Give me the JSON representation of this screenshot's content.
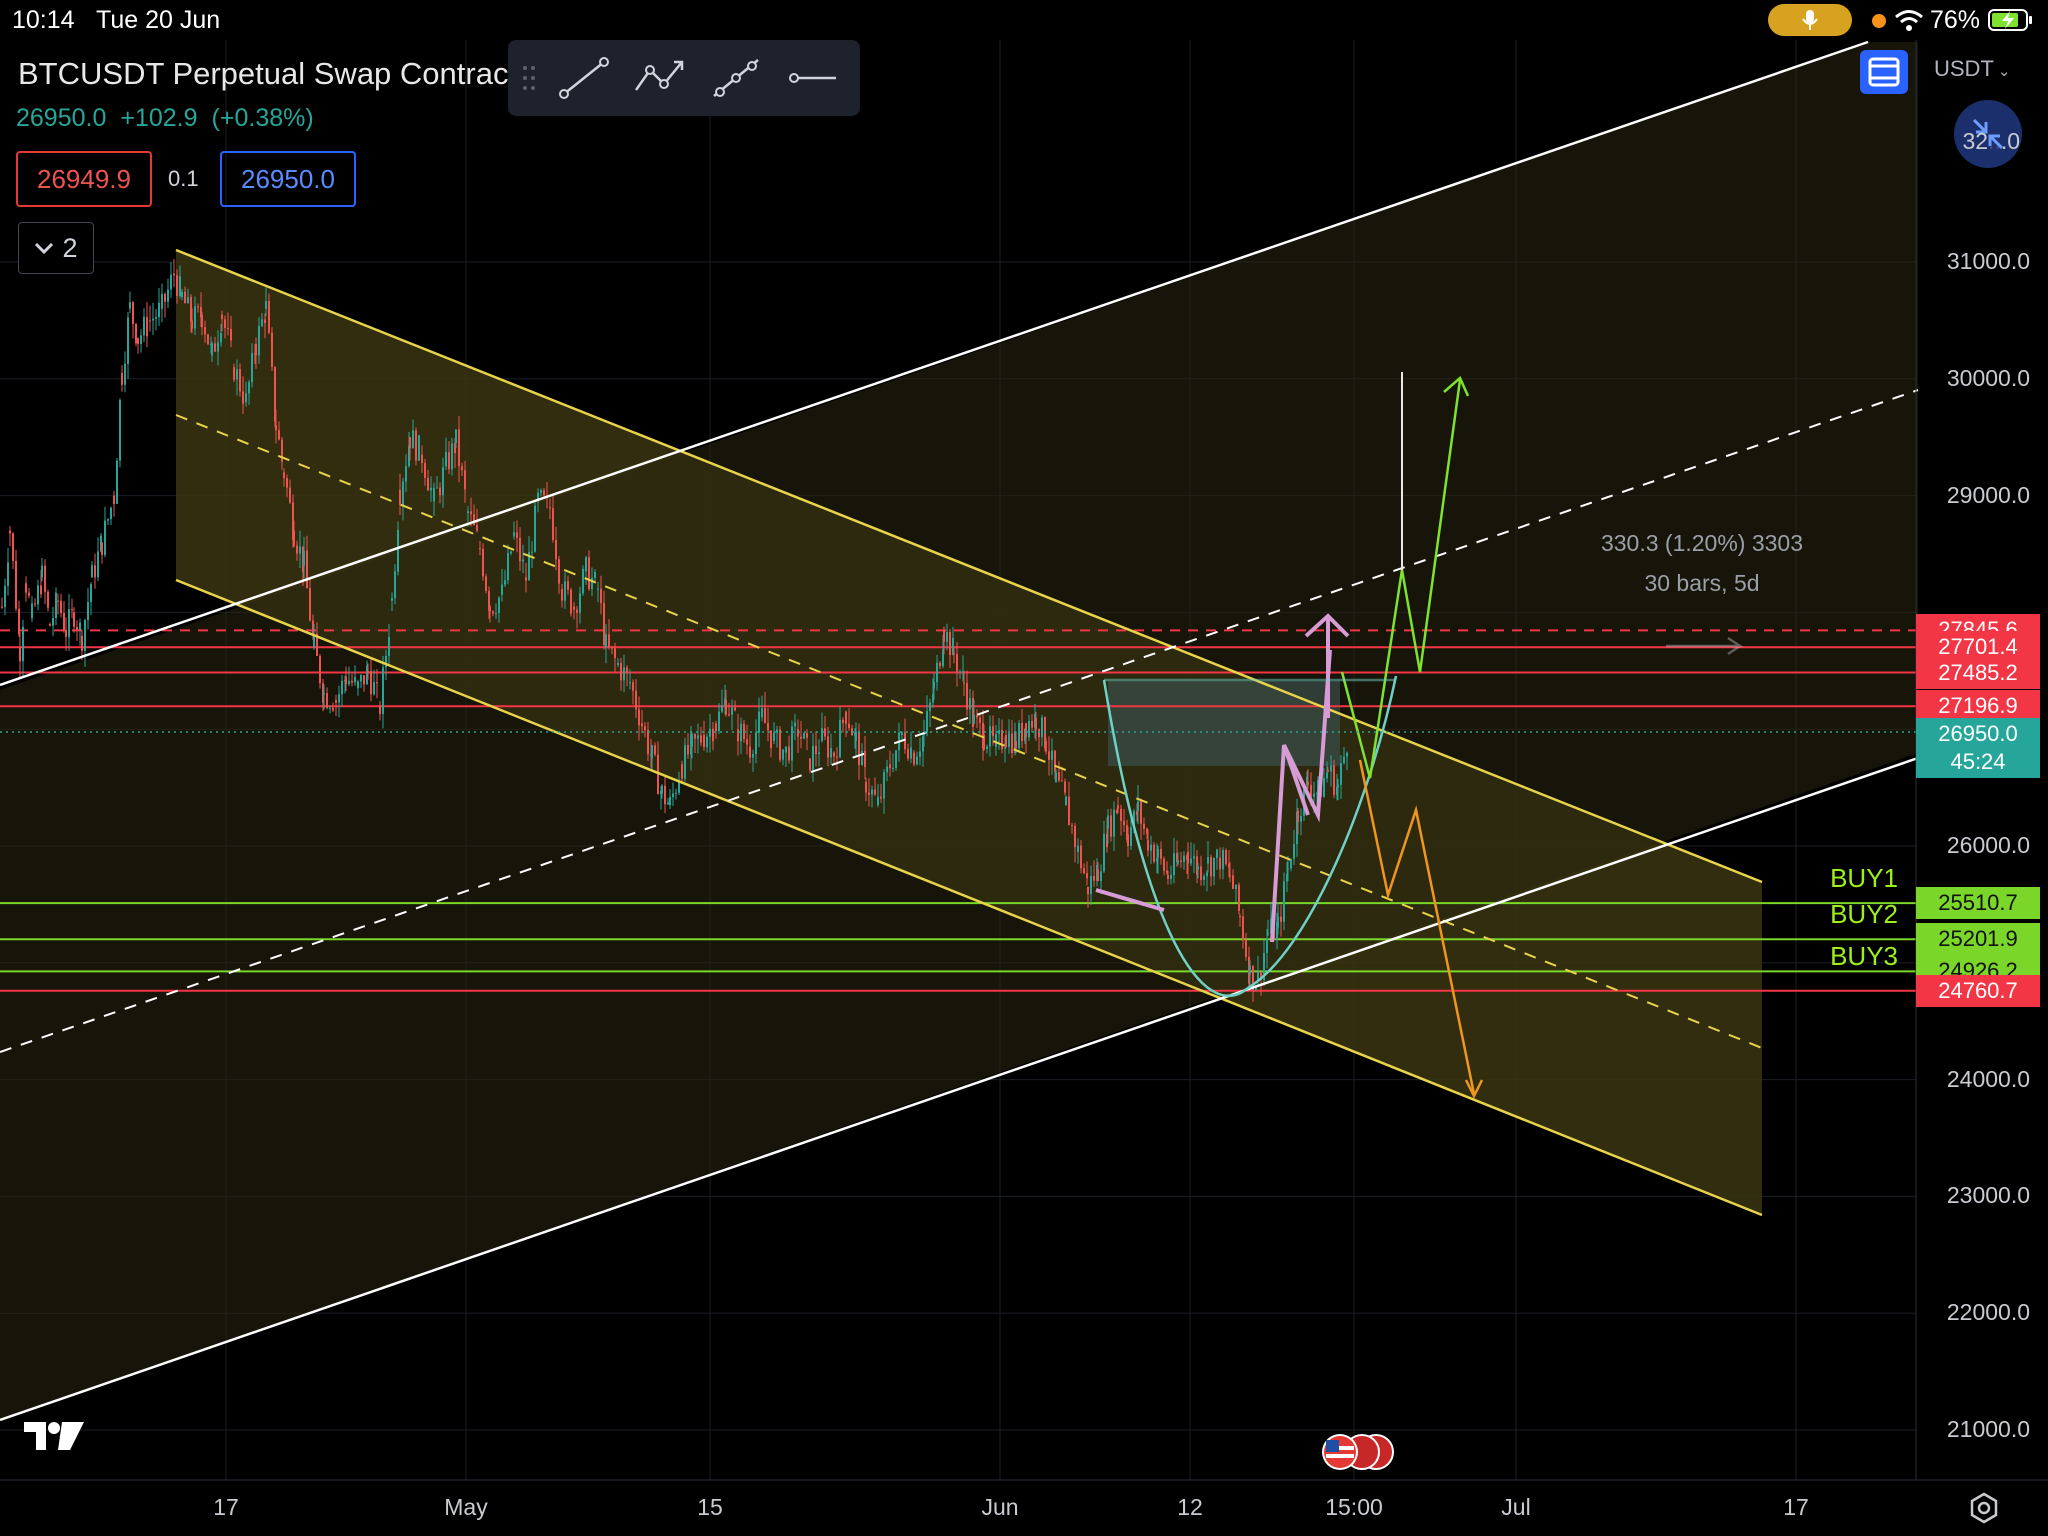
{
  "status_bar": {
    "time": "10:14",
    "date": "Tue 20 Jun",
    "battery": "76%"
  },
  "header": {
    "symbol_title": "BTCUSDT Perpetual Swap Contract",
    "last_price": "26950.0",
    "change": "+102.9",
    "change_pct": "(+0.38%)",
    "sell_price": "26949.9",
    "spread": "0.1",
    "buy_price": "26950.0",
    "indicators_count": "2",
    "currency": "USDT"
  },
  "toolbar": {
    "tools": [
      "trend-line-icon",
      "path-icon",
      "polyline-icon",
      "horizontal-ray-icon"
    ]
  },
  "price_axis": {
    "ticks": [
      {
        "label": "31000.0",
        "value": 31000
      },
      {
        "label": "30000.0",
        "value": 30000
      },
      {
        "label": "29000.0",
        "value": 29000
      },
      {
        "label": "26000.0",
        "value": 26000
      },
      {
        "label": "24000.0",
        "value": 24000
      },
      {
        "label": "23000.0",
        "value": 23000
      },
      {
        "label": "22000.0",
        "value": 22000
      },
      {
        "label": "21000.0",
        "value": 21000
      }
    ],
    "partial_top_label": "32",
    "partial_top_label_tail": ".0",
    "levels": [
      {
        "label": "27845.6",
        "value": 27845.6,
        "color": "#f23645",
        "style": "dashed"
      },
      {
        "label": "27701.4",
        "value": 27701.4,
        "color": "#f23645",
        "style": "solid"
      },
      {
        "label": "27485.2",
        "value": 27485.2,
        "color": "#f23645",
        "style": "solid"
      },
      {
        "label": "27196.9",
        "value": 27196.9,
        "color": "#f23645",
        "style": "solid"
      },
      {
        "label": "25510.7",
        "value": 25510.7,
        "color": "#7bd62a",
        "style": "solid"
      },
      {
        "label": "25201.9",
        "value": 25201.9,
        "color": "#7bd62a",
        "style": "solid"
      },
      {
        "label": "24926.2",
        "value": 24926.2,
        "color": "#7bd62a",
        "style": "solid"
      },
      {
        "label": "24760.7",
        "value": 24760.7,
        "color": "#f23645",
        "style": "solid"
      }
    ],
    "current": {
      "price": "26950.0",
      "countdown": "45:24",
      "value": 26950
    }
  },
  "buy_labels": [
    {
      "label": "BUY1",
      "value": 25510.7
    },
    {
      "label": "BUY2",
      "value": 25201.9
    },
    {
      "label": "BUY3",
      "value": 24926.2
    }
  ],
  "time_axis": {
    "ticks": [
      "17",
      "May",
      "15",
      "Jun",
      "12",
      "15:00",
      "Jul",
      "17"
    ]
  },
  "measure": {
    "line1": "330.3 (1.20%) 3303",
    "line2": "30 bars, 5d"
  },
  "colors": {
    "up": "#26a69a",
    "down": "#ef5350",
    "channel": "#e8d34a",
    "channel_fill": "#3a3510",
    "white_channel": "#ffffff",
    "buy": "#7bd62a",
    "level": "#f23645",
    "path_green": "#7fe22e",
    "path_orange": "#f0961e",
    "path_pink": "#d79bd6",
    "cup": "#6fd0c6"
  },
  "chart_data": {
    "type": "candlestick",
    "symbol": "BTCUSDT",
    "ylim": [
      20600,
      32200
    ],
    "price_path": [
      [
        0,
        28050
      ],
      [
        8,
        28700
      ],
      [
        18,
        27700
      ],
      [
        24,
        28250
      ],
      [
        30,
        27950
      ],
      [
        40,
        28300
      ],
      [
        48,
        27900
      ],
      [
        56,
        28100
      ],
      [
        64,
        27850
      ],
      [
        72,
        28000
      ],
      [
        80,
        27800
      ],
      [
        90,
        28300
      ],
      [
        100,
        28600
      ],
      [
        112,
        29000
      ],
      [
        120,
        30050
      ],
      [
        128,
        30600
      ],
      [
        136,
        30350
      ],
      [
        148,
        30500
      ],
      [
        160,
        30600
      ],
      [
        172,
        30900
      ],
      [
        180,
        30700
      ],
      [
        190,
        30500
      ],
      [
        200,
        30550
      ],
      [
        210,
        30200
      ],
      [
        220,
        30550
      ],
      [
        232,
        30100
      ],
      [
        244,
        29800
      ],
      [
        254,
        30300
      ],
      [
        264,
        30600
      ],
      [
        274,
        29600
      ],
      [
        282,
        29200
      ],
      [
        292,
        28700
      ],
      [
        302,
        28400
      ],
      [
        312,
        27700
      ],
      [
        322,
        27300
      ],
      [
        334,
        27250
      ],
      [
        344,
        27450
      ],
      [
        356,
        27350
      ],
      [
        366,
        27500
      ],
      [
        378,
        27200
      ],
      [
        390,
        28100
      ],
      [
        398,
        29050
      ],
      [
        408,
        29500
      ],
      [
        420,
        29350
      ],
      [
        432,
        28950
      ],
      [
        444,
        29250
      ],
      [
        454,
        29450
      ],
      [
        466,
        28850
      ],
      [
        478,
        28550
      ],
      [
        488,
        28050
      ],
      [
        500,
        28150
      ],
      [
        512,
        28650
      ],
      [
        524,
        28300
      ],
      [
        536,
        28950
      ],
      [
        548,
        28900
      ],
      [
        560,
        28200
      ],
      [
        572,
        28050
      ],
      [
        584,
        28350
      ],
      [
        596,
        28200
      ],
      [
        604,
        27700
      ],
      [
        616,
        27550
      ],
      [
        628,
        27400
      ],
      [
        640,
        27050
      ],
      [
        650,
        26750
      ],
      [
        660,
        26450
      ],
      [
        668,
        26350
      ],
      [
        680,
        26700
      ],
      [
        690,
        26850
      ],
      [
        702,
        26950
      ],
      [
        714,
        27050
      ],
      [
        724,
        27250
      ],
      [
        736,
        27000
      ],
      [
        748,
        26850
      ],
      [
        760,
        27100
      ],
      [
        772,
        26900
      ],
      [
        784,
        26800
      ],
      [
        796,
        27000
      ],
      [
        808,
        26750
      ],
      [
        820,
        26900
      ],
      [
        832,
        26800
      ],
      [
        844,
        27150
      ],
      [
        854,
        26900
      ],
      [
        864,
        26550
      ],
      [
        876,
        26350
      ],
      [
        888,
        26700
      ],
      [
        900,
        26950
      ],
      [
        912,
        26800
      ],
      [
        922,
        26950
      ],
      [
        932,
        27350
      ],
      [
        942,
        27850
      ],
      [
        952,
        27650
      ],
      [
        962,
        27400
      ],
      [
        972,
        27050
      ],
      [
        982,
        26950
      ],
      [
        994,
        26850
      ],
      [
        1004,
        26950
      ],
      [
        1014,
        26900
      ],
      [
        1024,
        27050
      ],
      [
        1034,
        27100
      ],
      [
        1044,
        26900
      ],
      [
        1054,
        26550
      ],
      [
        1064,
        26350
      ],
      [
        1076,
        25950
      ],
      [
        1086,
        25650
      ],
      [
        1096,
        25800
      ],
      [
        1106,
        26150
      ],
      [
        1116,
        26350
      ],
      [
        1126,
        26100
      ],
      [
        1136,
        26300
      ],
      [
        1146,
        26050
      ],
      [
        1156,
        25900
      ],
      [
        1166,
        25750
      ],
      [
        1176,
        25850
      ],
      [
        1186,
        25950
      ],
      [
        1196,
        25800
      ],
      [
        1206,
        25850
      ],
      [
        1218,
        25900
      ],
      [
        1228,
        25750
      ],
      [
        1238,
        25400
      ],
      [
        1248,
        24900
      ],
      [
        1256,
        24850
      ],
      [
        1266,
        25250
      ],
      [
        1276,
        25300
      ],
      [
        1286,
        25800
      ],
      [
        1296,
        26300
      ],
      [
        1306,
        26550
      ],
      [
        1316,
        26450
      ],
      [
        1326,
        26650
      ],
      [
        1336,
        26500
      ],
      [
        1346,
        26950
      ]
    ]
  }
}
